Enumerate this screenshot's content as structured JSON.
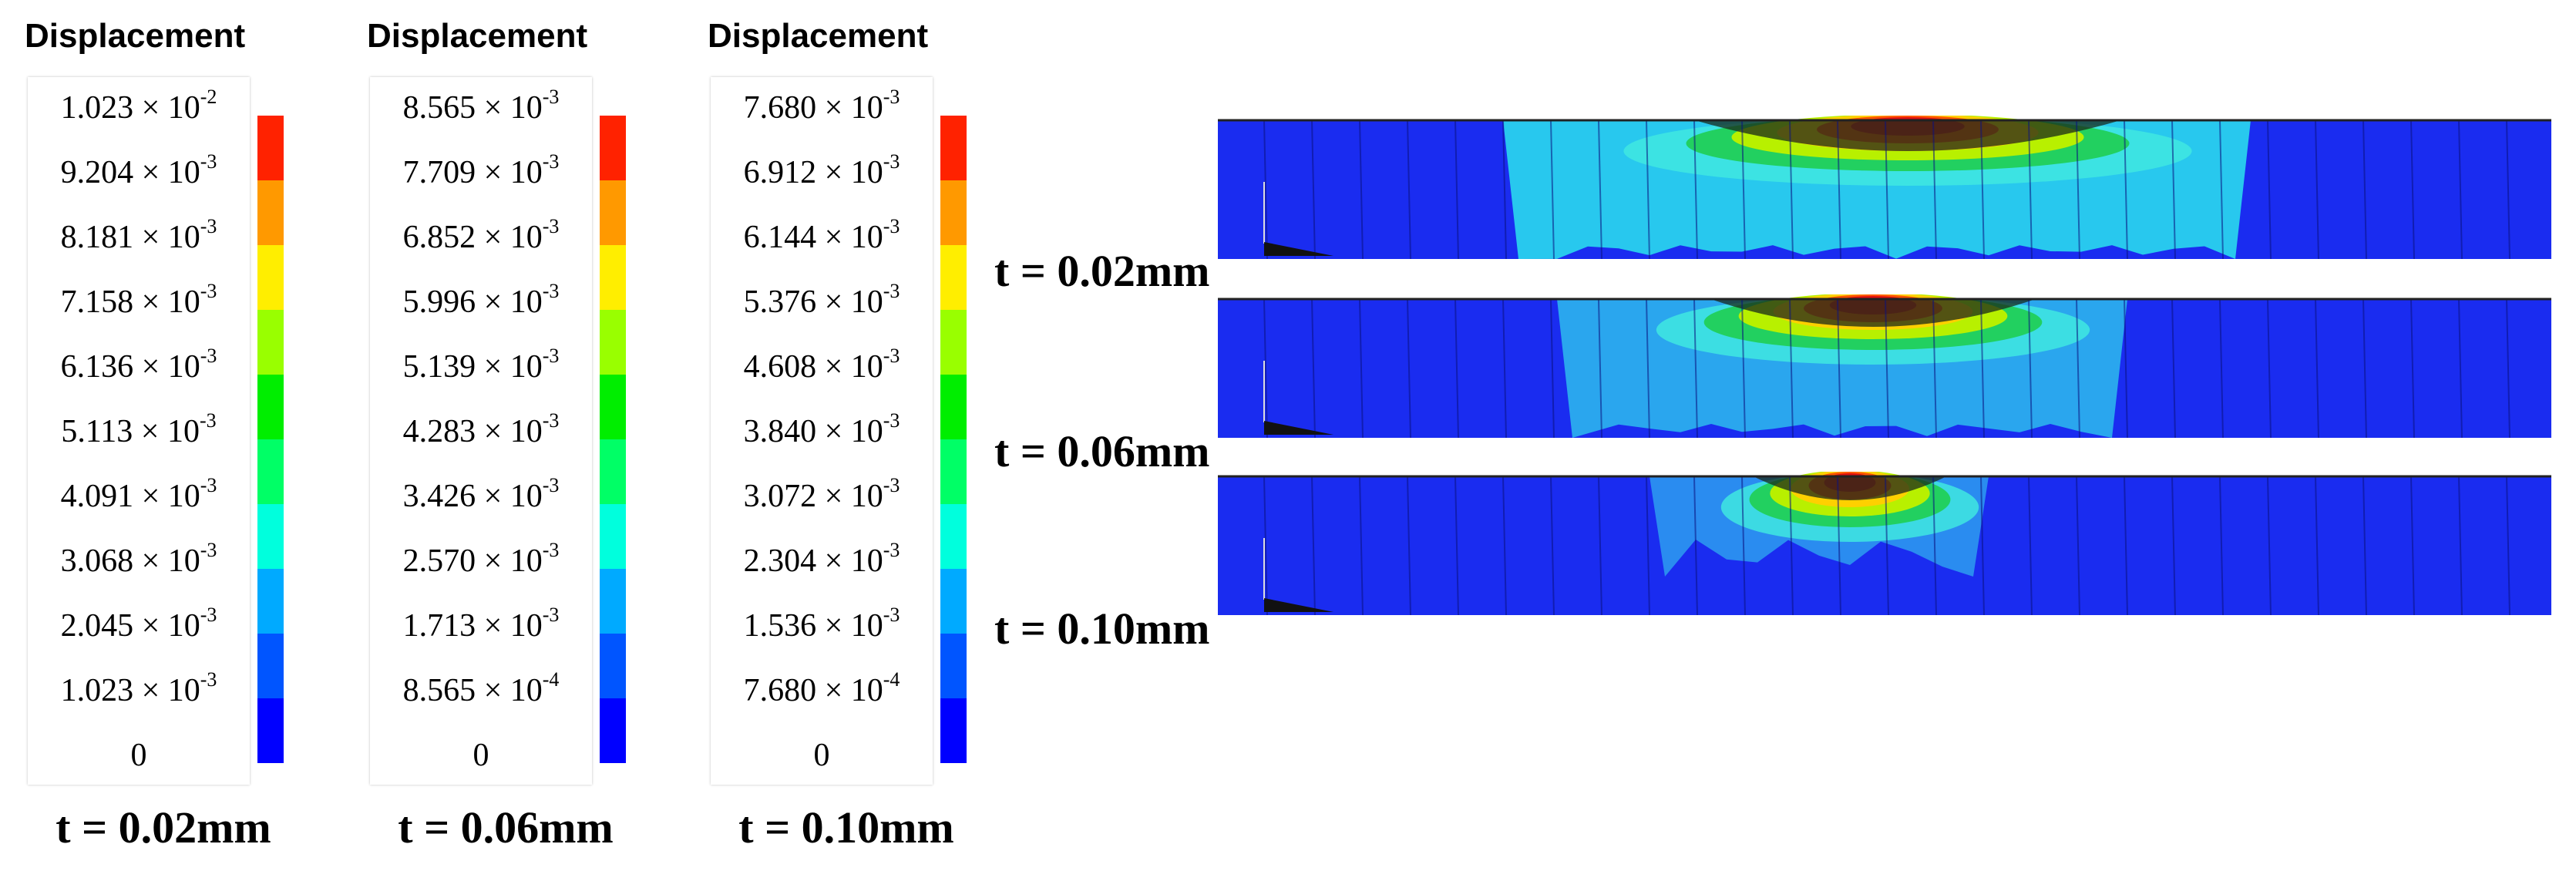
{
  "legend_color_scale": [
    "#0000ff",
    "#0055ff",
    "#00aaff",
    "#00ffdd",
    "#00ff66",
    "#00ee00",
    "#99ff00",
    "#ffee00",
    "#ff9900",
    "#ff2200"
  ],
  "legends": [
    {
      "title": "Displacement",
      "labels": [
        {
          "mantissa": "1.023 × 10",
          "exp": "-2"
        },
        {
          "mantissa": "9.204 × 10",
          "exp": "-3"
        },
        {
          "mantissa": "8.181 × 10",
          "exp": "-3"
        },
        {
          "mantissa": "7.158 × 10",
          "exp": "-3"
        },
        {
          "mantissa": "6.136 × 10",
          "exp": "-3"
        },
        {
          "mantissa": "5.113 × 10",
          "exp": "-3"
        },
        {
          "mantissa": "4.091 × 10",
          "exp": "-3"
        },
        {
          "mantissa": "3.068 × 10",
          "exp": "-3"
        },
        {
          "mantissa": "2.045 × 10",
          "exp": "-3"
        },
        {
          "mantissa": "1.023 × 10",
          "exp": "-3"
        },
        {
          "mantissa": "0",
          "exp": ""
        }
      ],
      "footer": "t = 0.02mm"
    },
    {
      "title": "Displacement",
      "labels": [
        {
          "mantissa": "8.565 × 10",
          "exp": "-3"
        },
        {
          "mantissa": "7.709 × 10",
          "exp": "-3"
        },
        {
          "mantissa": "6.852 × 10",
          "exp": "-3"
        },
        {
          "mantissa": "5.996 × 10",
          "exp": "-3"
        },
        {
          "mantissa": "5.139 × 10",
          "exp": "-3"
        },
        {
          "mantissa": "4.283 × 10",
          "exp": "-3"
        },
        {
          "mantissa": "3.426 × 10",
          "exp": "-3"
        },
        {
          "mantissa": "2.570 × 10",
          "exp": "-3"
        },
        {
          "mantissa": "1.713 × 10",
          "exp": "-3"
        },
        {
          "mantissa": "8.565 × 10",
          "exp": "-4"
        },
        {
          "mantissa": "0",
          "exp": ""
        }
      ],
      "footer": "t = 0.06mm"
    },
    {
      "title": "Displacement",
      "labels": [
        {
          "mantissa": "7.680 × 10",
          "exp": "-3"
        },
        {
          "mantissa": "6.912 × 10",
          "exp": "-3"
        },
        {
          "mantissa": "6.144 × 10",
          "exp": "-3"
        },
        {
          "mantissa": "5.376 × 10",
          "exp": "-3"
        },
        {
          "mantissa": "4.608 × 10",
          "exp": "-3"
        },
        {
          "mantissa": "3.840 × 10",
          "exp": "-3"
        },
        {
          "mantissa": "3.072 × 10",
          "exp": "-3"
        },
        {
          "mantissa": "2.304 × 10",
          "exp": "-3"
        },
        {
          "mantissa": "1.536 × 10",
          "exp": "-3"
        },
        {
          "mantissa": "7.680 × 10",
          "exp": "-4"
        },
        {
          "mantissa": "0",
          "exp": ""
        }
      ],
      "footer": "t = 0.10mm"
    }
  ],
  "panels": [
    {
      "label": "t = 0.02mm",
      "zone_color": "#28c8ee"
    },
    {
      "label": "t = 0.06mm",
      "zone_color": "#2aa6ee"
    },
    {
      "label": "t = 0.10mm",
      "zone_color": "#2a8cf0"
    }
  ]
}
